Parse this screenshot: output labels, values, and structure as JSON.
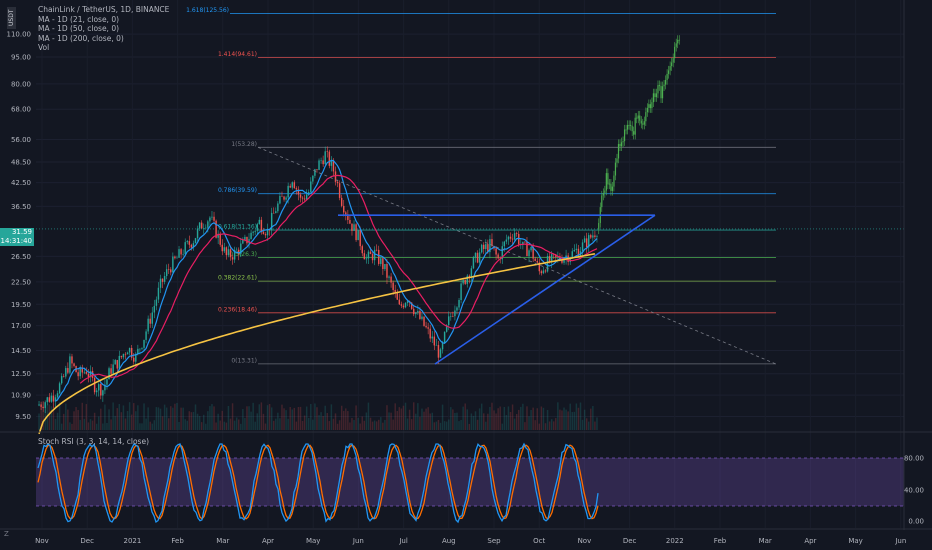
{
  "legend": {
    "title": "ChainLink / TetherUS, 1D, BINANCE",
    "ma21": "MA - 1D (21, close, 0)",
    "ma50": "MA - 1D (50, close, 0)",
    "ma200": "MA - 1D (200, close, 0)",
    "vol": "Vol"
  },
  "symbol_badge": "USDT",
  "rsi_title": "Stoch RSI (3, 3, 14, 14, close)",
  "price_badge": {
    "price": "31.59",
    "countdown": "14:31:40"
  },
  "z_label": "Z",
  "colors": {
    "background": "#131722",
    "up": "#26a69a",
    "down": "#ef5350",
    "projection": "#4caf50",
    "ma21": "#2196f3",
    "ma50": "#e91e63",
    "ma200": "#f6c343",
    "trendline": "#2a5ee8",
    "rsi_band": "#7e57c2",
    "rsi_k": "#2196f3",
    "rsi_d": "#ff6d00"
  },
  "chart_data": {
    "type": "candlestick",
    "price_axis_ticks": [
      "110.00",
      "95.00",
      "80.00",
      "68.00",
      "56.00",
      "48.50",
      "42.50",
      "36.50",
      "26.50",
      "22.50",
      "19.50",
      "17.00",
      "14.50",
      "12.50",
      "10.90",
      "9.50"
    ],
    "rsi_axis_ticks": [
      "80.00",
      "40.00",
      "0.00"
    ],
    "time_axis_ticks": [
      "Nov",
      "Dec",
      "2021",
      "Feb",
      "Mar",
      "Apr",
      "May",
      "Jun",
      "Jul",
      "Aug",
      "Sep",
      "Oct",
      "Nov",
      "Dec",
      "2022",
      "Feb",
      "Mar",
      "Apr",
      "May",
      "Jun"
    ],
    "fib_levels": [
      {
        "label": "1.618(125.56)",
        "value": 125.56,
        "color": "#2196f3"
      },
      {
        "label": "1.414(94.61)",
        "value": 94.61,
        "color": "#ef5350"
      },
      {
        "label": "1(53.28)",
        "value": 53.28,
        "color": "#787b86"
      },
      {
        "label": "0.786(39.59)",
        "value": 39.59,
        "color": "#2196f3"
      },
      {
        "label": "0.618(31.36)",
        "value": 31.36,
        "color": "#26a69a"
      },
      {
        "label": "0.5(26.3)",
        "value": 26.3,
        "color": "#4caf50"
      },
      {
        "label": "0.382(22.61)",
        "value": 22.61,
        "color": "#8bc34a"
      },
      {
        "label": "0.236(18.46)",
        "value": 18.46,
        "color": "#ef5350"
      },
      {
        "label": "0(13.31)",
        "value": 13.31,
        "color": "#787b86"
      }
    ],
    "price_closes": [
      10.2,
      10.5,
      10.9,
      11.8,
      13.5,
      12.4,
      12.8,
      11.6,
      11.3,
      12.9,
      13.6,
      14.8,
      13.9,
      15.8,
      18.5,
      22.0,
      24.5,
      26.2,
      28.0,
      29.5,
      32.5,
      34.0,
      30.0,
      26.5,
      27.0,
      28.5,
      30.5,
      33.0,
      31.0,
      36.0,
      39.0,
      44.0,
      38.0,
      40.0,
      47.0,
      51.0,
      46.0,
      38.0,
      33.0,
      30.0,
      26.0,
      27.0,
      25.0,
      22.0,
      19.0,
      20.5,
      18.5,
      17.0,
      15.5,
      14.0,
      17.5,
      20.0,
      23.0,
      25.5,
      27.5,
      28.5,
      26.0,
      29.5,
      31.0,
      28.0,
      27.5,
      24.0,
      25.5,
      26.0,
      26.5,
      27.0,
      28.0,
      29.5,
      31.5
    ],
    "projection_closes": [
      32.0,
      38.0,
      44.0,
      40.0,
      48.0,
      55.0,
      58.0,
      64.0,
      60.0,
      66.0,
      62.0,
      68.0,
      72.0,
      78.0,
      75.0,
      85.0,
      92.0,
      98.0,
      104.0
    ]
  }
}
